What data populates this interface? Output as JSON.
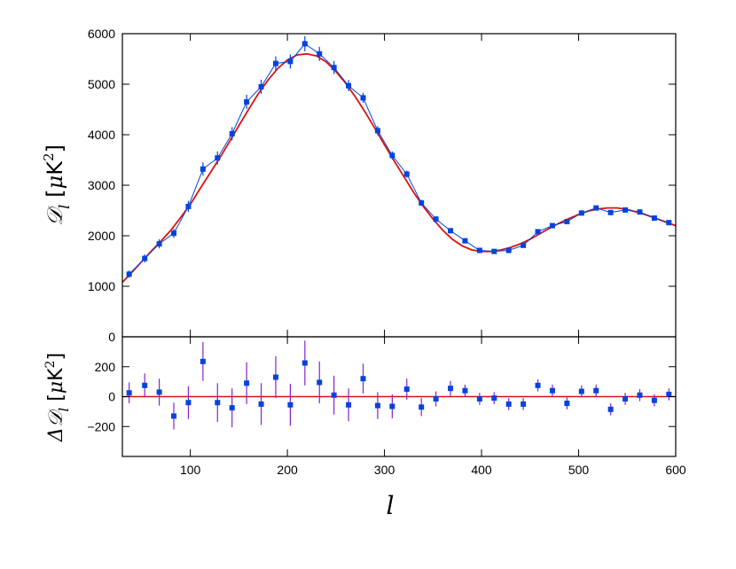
{
  "chart_data": [
    {
      "type": "scatter",
      "panel": "top",
      "title": "",
      "xlabel": "",
      "ylabel": "𝒟",
      "ylabel_subscript": "l",
      "ylabel_unit_open": "[",
      "ylabel_unit_mu": "μ",
      "ylabel_unit_K": "K",
      "ylabel_unit_pow": "2",
      "ylabel_unit_close": "]",
      "xlim": [
        30,
        600
      ],
      "ylim": [
        0,
        6000
      ],
      "yticks": [
        0,
        1000,
        2000,
        3000,
        4000,
        5000,
        6000
      ],
      "grid": false,
      "legend": "none",
      "colors": {
        "data": "#0044dd",
        "errorbar": "#0044dd",
        "line": "#0044dd",
        "model": "#dd1111"
      },
      "series": [
        {
          "x": [
            37,
            53,
            68,
            83,
            98,
            113,
            128,
            143,
            158,
            173,
            188,
            203,
            218,
            233,
            248,
            263,
            278,
            293,
            308,
            323,
            338,
            353,
            368,
            383,
            398,
            413,
            428,
            443,
            458,
            473,
            488,
            503,
            518,
            533,
            548,
            563,
            578,
            593
          ],
          "values": [
            1240,
            1550,
            1840,
            2050,
            2580,
            3320,
            3540,
            4020,
            4650,
            4950,
            5410,
            5450,
            5800,
            5600,
            5330,
            4970,
            4730,
            4080,
            3590,
            3220,
            2650,
            2330,
            2100,
            1900,
            1710,
            1690,
            1710,
            1810,
            2080,
            2200,
            2280,
            2450,
            2550,
            2460,
            2510,
            2470,
            2350,
            2260
          ],
          "errors": [
            70,
            80,
            90,
            90,
            110,
            130,
            130,
            130,
            140,
            140,
            140,
            140,
            150,
            140,
            130,
            110,
            100,
            90,
            80,
            70,
            60,
            50,
            50,
            40,
            40,
            40,
            40,
            40,
            40,
            40,
            40,
            40,
            40,
            40,
            40,
            40,
            40,
            40
          ]
        }
      ],
      "model": {
        "x": [
          30,
          40,
          50,
          60,
          70,
          80,
          90,
          100,
          110,
          120,
          130,
          140,
          150,
          160,
          170,
          180,
          190,
          200,
          210,
          220,
          230,
          240,
          250,
          260,
          270,
          280,
          290,
          300,
          310,
          320,
          330,
          340,
          350,
          360,
          370,
          380,
          390,
          400,
          410,
          420,
          430,
          440,
          450,
          460,
          470,
          480,
          490,
          500,
          510,
          520,
          530,
          540,
          550,
          560,
          570,
          580,
          590,
          600
        ],
        "values": [
          1080,
          1280,
          1490,
          1700,
          1900,
          2110,
          2360,
          2620,
          2930,
          3230,
          3530,
          3850,
          4180,
          4500,
          4810,
          5080,
          5310,
          5480,
          5580,
          5600,
          5560,
          5440,
          5250,
          5020,
          4750,
          4450,
          4130,
          3800,
          3480,
          3170,
          2860,
          2580,
          2330,
          2110,
          1930,
          1800,
          1720,
          1690,
          1690,
          1720,
          1770,
          1840,
          1930,
          2040,
          2150,
          2250,
          2340,
          2420,
          2490,
          2530,
          2550,
          2550,
          2520,
          2470,
          2410,
          2340,
          2270,
          2200
        ]
      }
    },
    {
      "type": "scatter",
      "panel": "bottom",
      "title": "",
      "xlabel": "l",
      "ylabel": "Δ𝒟",
      "ylabel_subscript": "l",
      "ylabel_unit_open": "[",
      "ylabel_unit_mu": "μ",
      "ylabel_unit_K": "K",
      "ylabel_unit_pow": "2",
      "ylabel_unit_close": "]",
      "xlim": [
        30,
        600
      ],
      "ylim": [
        -400,
        400
      ],
      "yticks": [
        -200,
        0,
        200
      ],
      "xticks": [
        100,
        200,
        300,
        400,
        500,
        600
      ],
      "grid": false,
      "legend": "none",
      "colors": {
        "data": "#0044dd",
        "errorbar": "#8822cc",
        "zero_line": "#dd1111"
      },
      "series": [
        {
          "x": [
            37,
            53,
            68,
            83,
            98,
            113,
            128,
            143,
            158,
            173,
            188,
            203,
            218,
            233,
            248,
            263,
            278,
            293,
            308,
            323,
            338,
            353,
            368,
            383,
            398,
            413,
            428,
            443,
            458,
            473,
            488,
            503,
            518,
            533,
            548,
            563,
            578,
            593
          ],
          "values": [
            25,
            75,
            30,
            -130,
            -40,
            235,
            -40,
            -75,
            90,
            -50,
            130,
            -55,
            225,
            95,
            10,
            -55,
            120,
            -60,
            -65,
            50,
            -70,
            -15,
            55,
            40,
            -15,
            -10,
            -50,
            -50,
            75,
            40,
            -45,
            35,
            40,
            -85,
            -15,
            10,
            -25,
            15
          ],
          "errors": [
            70,
            80,
            90,
            90,
            110,
            130,
            130,
            130,
            140,
            140,
            140,
            140,
            150,
            140,
            130,
            110,
            100,
            90,
            80,
            70,
            60,
            50,
            50,
            40,
            40,
            40,
            40,
            40,
            40,
            40,
            40,
            40,
            40,
            40,
            40,
            40,
            40,
            40
          ]
        }
      ]
    }
  ]
}
